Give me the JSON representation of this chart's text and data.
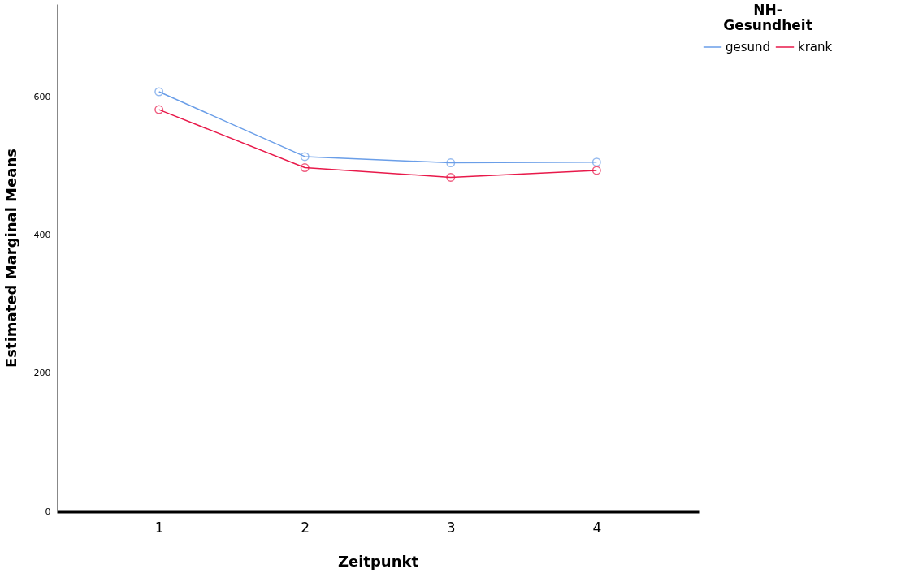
{
  "chart_data": {
    "type": "line",
    "xlabel": "Zeitpunkt",
    "ylabel": "Estimated Marginal Means",
    "legend_title": "NH-Gesundheit",
    "categories": [
      "1",
      "2",
      "3",
      "4"
    ],
    "series": [
      {
        "name": "gesund",
        "color": "#6a9ee8",
        "values": [
          608,
          514,
          505,
          506
        ]
      },
      {
        "name": "krank",
        "color": "#e8194a",
        "values": [
          582,
          498,
          484,
          494
        ]
      }
    ],
    "ylim": [
      0,
      735
    ],
    "yticks": [
      0,
      200,
      400,
      600
    ],
    "grid": false,
    "legend": "top right",
    "marker": "circle",
    "line_style": "solid"
  }
}
